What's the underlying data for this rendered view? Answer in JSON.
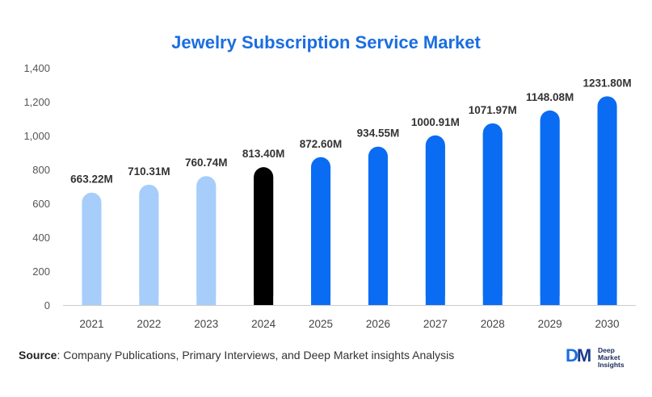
{
  "chart_data": {
    "type": "bar",
    "title": "Jewelry Subscription Service Market",
    "xlabel": "",
    "ylabel": "",
    "categories": [
      "2021",
      "2022",
      "2023",
      "2024",
      "2025",
      "2026",
      "2027",
      "2028",
      "2029",
      "2030"
    ],
    "values": [
      663.22,
      710.31,
      760.74,
      813.4,
      872.6,
      934.55,
      1000.91,
      1071.97,
      1148.08,
      1231.8
    ],
    "data_labels": [
      "663.22M",
      "710.31M",
      "760.74M",
      "813.40M",
      "872.60M",
      "934.55M",
      "1000.91M",
      "1071.97M",
      "1148.08M",
      "1231.80M"
    ],
    "ylim": [
      0,
      1400
    ],
    "yticks": [
      0,
      200,
      400,
      600,
      800,
      "1,000",
      "1,200",
      "1,400"
    ],
    "ytick_values": [
      0,
      200,
      400,
      600,
      800,
      1000,
      1200,
      1400
    ],
    "bar_colors": [
      "#a7cdfb",
      "#a7cdfb",
      "#a7cdfb",
      "#000000",
      "#0a6cf2",
      "#0a6cf2",
      "#0a6cf2",
      "#0a6cf2",
      "#0a6cf2",
      "#0a6cf2"
    ],
    "grid": false,
    "legend": "none"
  },
  "source": {
    "label": "Source",
    "text": ": Company Publications, Primary Interviews, and Deep Market insights Analysis"
  },
  "logo": {
    "mark_d": "D",
    "mark_m": "M",
    "line1": "Deep",
    "line2": "Market",
    "line3": "Insights"
  },
  "colors": {
    "title": "#1a6ee0",
    "historical": "#a7cdfb",
    "base_year": "#000000",
    "forecast": "#0a6cf2"
  }
}
